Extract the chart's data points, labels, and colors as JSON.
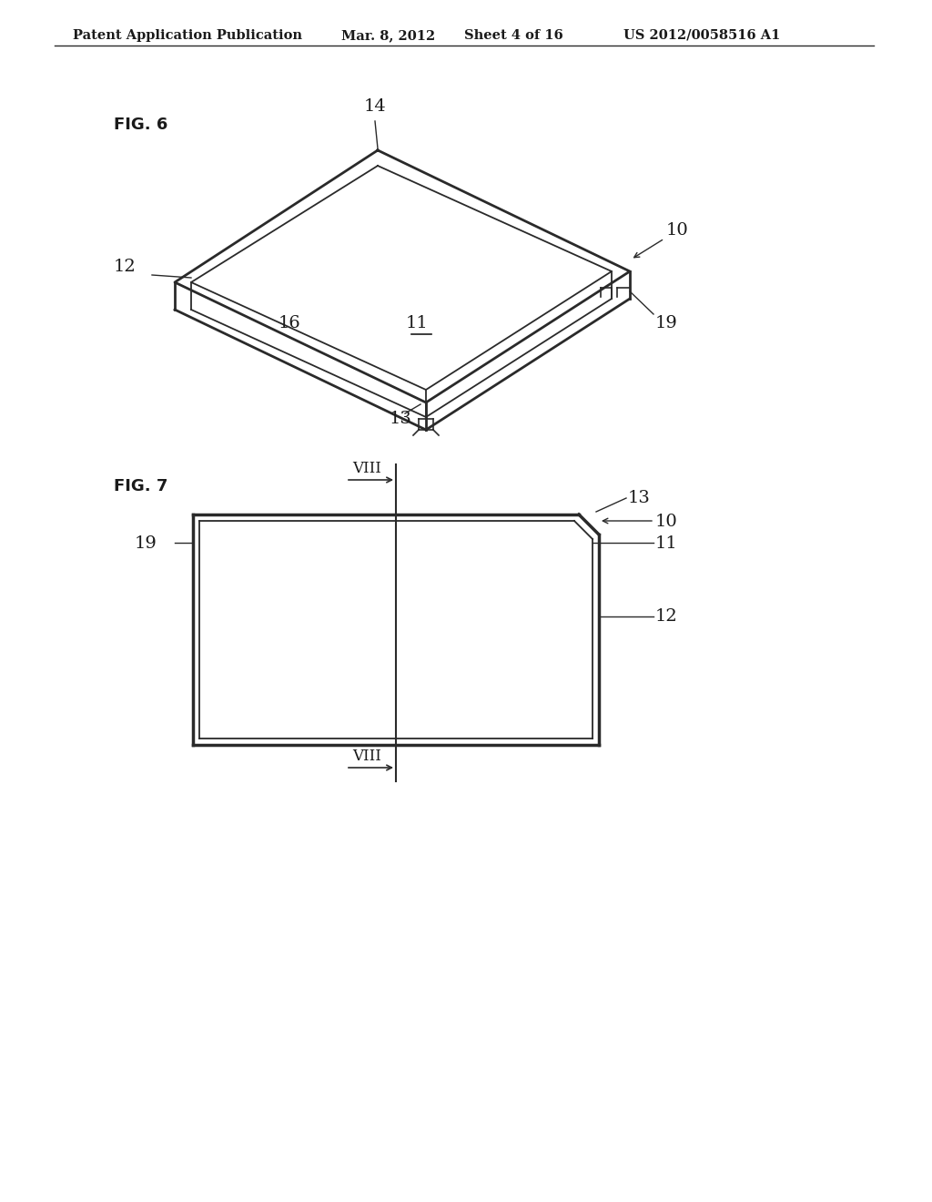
{
  "bg_color": "#ffffff",
  "header_text": "Patent Application Publication",
  "header_date": "Mar. 8, 2012",
  "header_sheet": "Sheet 4 of 16",
  "header_patent": "US 2012/0058516 A1",
  "fig6_label": "FIG. 6",
  "fig7_label": "FIG. 7",
  "line_color": "#2a2a2a",
  "label_color": "#1a1a1a"
}
